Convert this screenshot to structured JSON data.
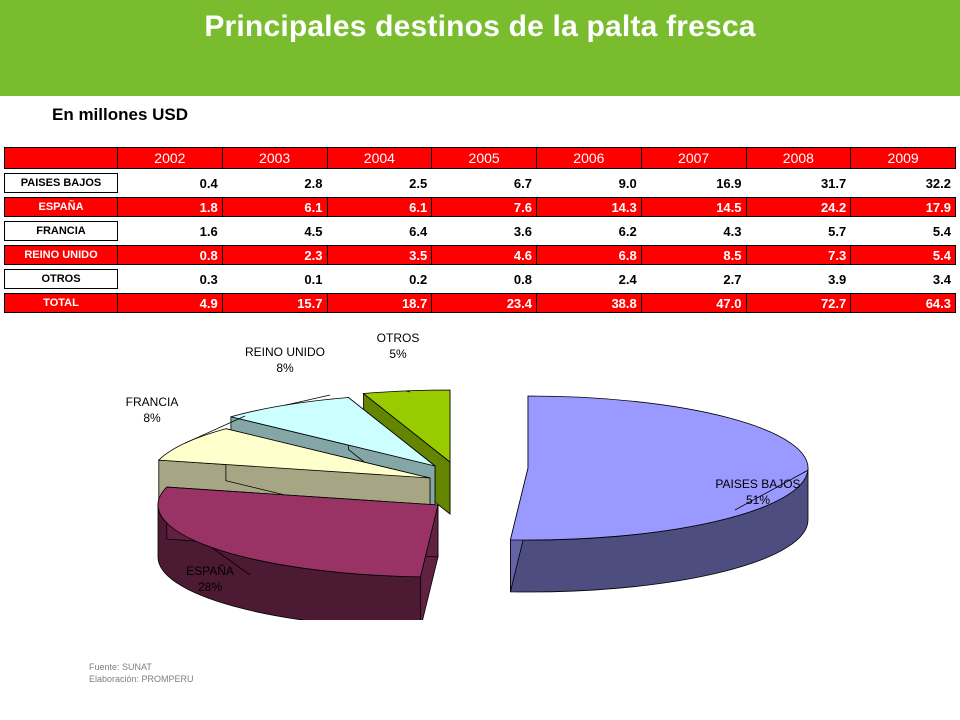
{
  "title": "Principales destinos de la palta fresca",
  "subtitle": "En millones USD",
  "table": {
    "years": [
      "2002",
      "2003",
      "2004",
      "2005",
      "2006",
      "2007",
      "2008",
      "2009"
    ],
    "rows": [
      {
        "label": "PAISES BAJOS",
        "values": [
          "0.4",
          "2.8",
          "2.5",
          "6.7",
          "9.0",
          "16.9",
          "31.7",
          "32.2"
        ],
        "style": "white"
      },
      {
        "label": "ESPAÑA",
        "values": [
          "1.8",
          "6.1",
          "6.1",
          "7.6",
          "14.3",
          "14.5",
          "24.2",
          "17.9"
        ],
        "style": "red"
      },
      {
        "label": "FRANCIA",
        "values": [
          "1.6",
          "4.5",
          "6.4",
          "3.6",
          "6.2",
          "4.3",
          "5.7",
          "5.4"
        ],
        "style": "white"
      },
      {
        "label": "REINO UNIDO",
        "values": [
          "0.8",
          "2.3",
          "3.5",
          "4.6",
          "6.8",
          "8.5",
          "7.3",
          "5.4"
        ],
        "style": "red"
      },
      {
        "label": "OTROS",
        "values": [
          "0.3",
          "0.1",
          "0.2",
          "0.8",
          "2.4",
          "2.7",
          "3.9",
          "3.4"
        ],
        "style": "white"
      },
      {
        "label": "TOTAL",
        "values": [
          "4.9",
          "15.7",
          "18.7",
          "23.4",
          "38.8",
          "47.0",
          "72.7",
          "64.3"
        ],
        "style": "red"
      }
    ]
  },
  "chart_data": {
    "type": "pie",
    "title": "",
    "slices": [
      {
        "name": "PAISES BAJOS",
        "label": "51%",
        "value": 51,
        "color": "#9999ff"
      },
      {
        "name": "ESPAÑA",
        "label": "28%",
        "value": 28,
        "color": "#993366"
      },
      {
        "name": "FRANCIA",
        "label": "8%",
        "value": 8,
        "color": "#ffffcc"
      },
      {
        "name": "REINO UNIDO",
        "label": "8%",
        "value": 8,
        "color": "#ccffff"
      },
      {
        "name": "OTROS",
        "label": "5%",
        "value": 5,
        "color": "#99cc00"
      }
    ],
    "exploded": true,
    "three_d": true
  },
  "footer": {
    "source": "Fuente: SUNAT",
    "elaboration": "Elaboración: PROMPERU"
  },
  "colors": {
    "banner": "#79bd2e",
    "table_red": "#ff0000"
  }
}
